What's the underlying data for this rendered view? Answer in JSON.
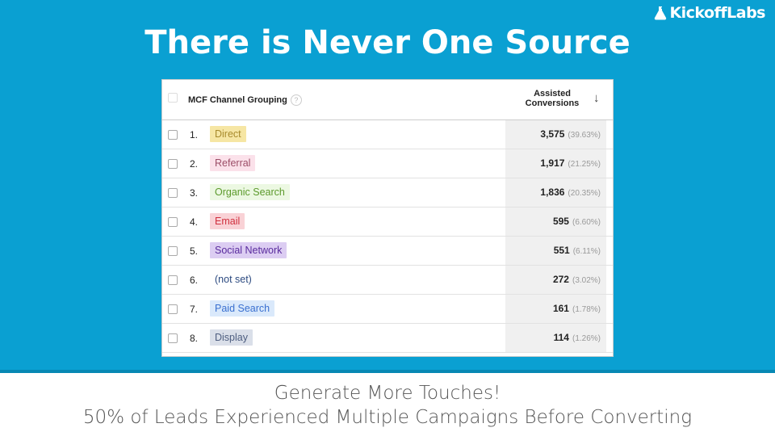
{
  "brand": "KickoffLabs",
  "title": "There is Never One Source",
  "table": {
    "col1": "MCF Channel Grouping",
    "help": "?",
    "col2_line1": "Assisted",
    "col2_line2": "Conversions",
    "sort_icon": "arrow-down-icon",
    "rows": [
      {
        "num": "1.",
        "label": "Direct",
        "value": "3,575",
        "pct": "(39.63%)",
        "bg": "#f6e6a4",
        "fg": "#a88a2c"
      },
      {
        "num": "2.",
        "label": "Referral",
        "value": "1,917",
        "pct": "(21.25%)",
        "bg": "#fbe1ea",
        "fg": "#9c4e68"
      },
      {
        "num": "3.",
        "label": "Organic Search",
        "value": "1,836",
        "pct": "(20.35%)",
        "bg": "#ecf8e2",
        "fg": "#5c9a2c"
      },
      {
        "num": "4.",
        "label": "Email",
        "value": "595",
        "pct": "(6.60%)",
        "bg": "#f9d2d6",
        "fg": "#d0303e"
      },
      {
        "num": "5.",
        "label": "Social Network",
        "value": "551",
        "pct": "(6.11%)",
        "bg": "#dccdf2",
        "fg": "#5a2c9e"
      },
      {
        "num": "6.",
        "label": "(not set)",
        "value": "272",
        "pct": "(3.02%)",
        "bg": "transparent",
        "fg": "#2c4a80"
      },
      {
        "num": "7.",
        "label": "Paid Search",
        "value": "161",
        "pct": "(1.78%)",
        "bg": "#dae9fb",
        "fg": "#3a70d0"
      },
      {
        "num": "8.",
        "label": "Display",
        "value": "114",
        "pct": "(1.26%)",
        "bg": "#dadfe9",
        "fg": "#4e5e80"
      }
    ]
  },
  "footer": {
    "line1": "Generate More Touches!",
    "line2": "50% of Leads Experienced Multiple Campaigns Before Converting"
  }
}
